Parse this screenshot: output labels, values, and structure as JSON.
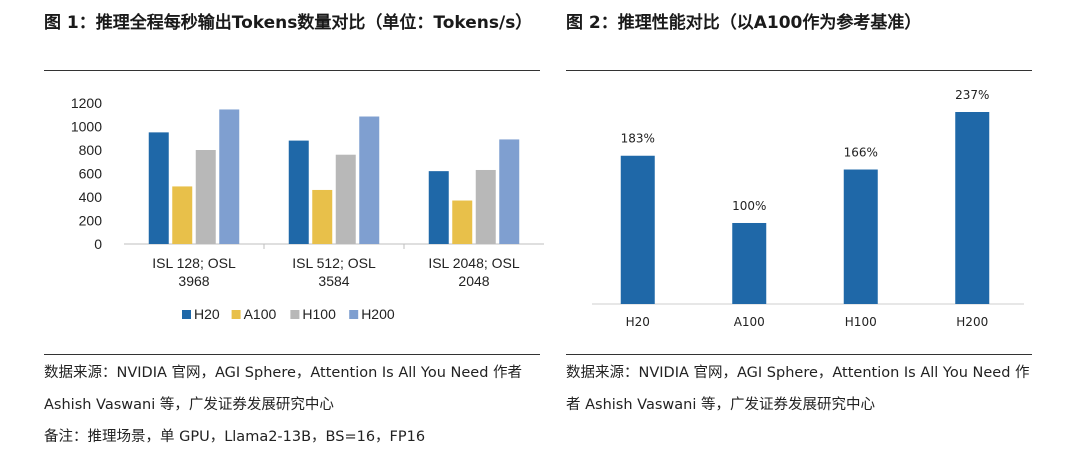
{
  "left": {
    "title": "图 1：推理全程每秒输出Tokens数量对比（单位：Tokens/s）",
    "source": "数据来源：NVIDIA 官网，AGI Sphere，Attention Is All You Need 作者 Ashish Vaswani 等，广发证券发展研究中心",
    "note": "备注：推理场景，单 GPU，Llama2-13B，BS=16，FP16"
  },
  "right": {
    "title": "图 2：推理性能对比（以A100作为参考基准）",
    "source": "数据来源：NVIDIA 官网，AGI Sphere，Attention Is All You Need 作者 Ashish Vaswani 等，广发证券发展研究中心"
  },
  "colors": {
    "H20": "#1f68a8",
    "A100": "#e8c04a",
    "H100": "#b8b8b8",
    "H200": "#7f9fd0"
  },
  "chart_data": [
    {
      "type": "bar",
      "categories": [
        [
          "ISL 128; OSL",
          "3968"
        ],
        [
          "ISL 512; OSL",
          "3584"
        ],
        [
          "ISL 2048; OSL",
          "2048"
        ]
      ],
      "series": [
        {
          "name": "H20",
          "values": [
            950,
            880,
            620
          ]
        },
        {
          "name": "A100",
          "values": [
            490,
            460,
            370
          ]
        },
        {
          "name": "H100",
          "values": [
            800,
            760,
            630
          ]
        },
        {
          "name": "H200",
          "values": [
            1145,
            1085,
            890
          ]
        }
      ],
      "yticks": [
        0,
        200,
        400,
        600,
        800,
        1000,
        1200
      ],
      "ylim": [
        0,
        1200
      ],
      "xlabel": "",
      "ylabel": "",
      "legend": "bottom",
      "grid": false
    },
    {
      "type": "bar",
      "categories": [
        "H20",
        "A100",
        "H100",
        "H200"
      ],
      "values": [
        183,
        100,
        166,
        237
      ],
      "labels": [
        "183%",
        "100%",
        "166%",
        "237%"
      ],
      "ylim": [
        0,
        237
      ],
      "xlabel": "",
      "ylabel": "",
      "color": "#1f68a8",
      "grid": false
    }
  ]
}
